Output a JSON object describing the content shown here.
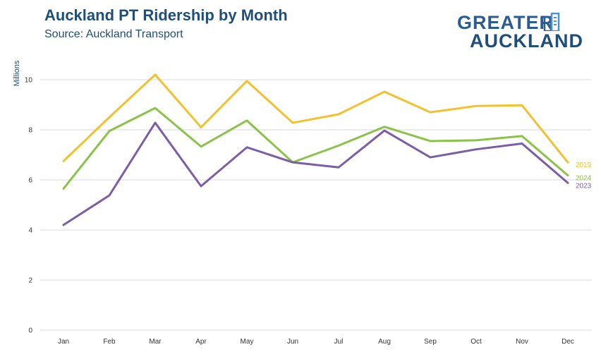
{
  "header": {
    "title": "Auckland PT Ridership by Month",
    "subtitle": "Source: Auckland Transport"
  },
  "logo": {
    "line1": "GREATER",
    "line2": "AUCKLAND"
  },
  "chart_data": {
    "type": "line",
    "categories": [
      "Jan",
      "Feb",
      "Mar",
      "Apr",
      "May",
      "Jun",
      "Jul",
      "Aug",
      "Sep",
      "Oct",
      "Nov",
      "Dec"
    ],
    "ylabel": "Millions",
    "xlabel": "",
    "ylim": [
      0,
      10
    ],
    "yticks": [
      0,
      2,
      4,
      6,
      8,
      10
    ],
    "grid": true,
    "series": [
      {
        "name": "2019",
        "color": "#f2c12e",
        "values": [
          6.75,
          8.5,
          10.2,
          8.1,
          9.95,
          8.28,
          8.62,
          9.52,
          8.7,
          8.95,
          8.98,
          6.7
        ]
      },
      {
        "name": "2024",
        "color": "#8bc34a",
        "values": [
          5.65,
          7.95,
          8.87,
          7.33,
          8.37,
          6.7,
          7.37,
          8.12,
          7.55,
          7.58,
          7.75,
          6.18
        ]
      },
      {
        "name": "2023",
        "color": "#7b5ea7",
        "values": [
          4.2,
          5.38,
          8.28,
          5.75,
          7.3,
          6.7,
          6.5,
          7.97,
          6.9,
          7.22,
          7.45,
          5.88
        ]
      }
    ]
  }
}
